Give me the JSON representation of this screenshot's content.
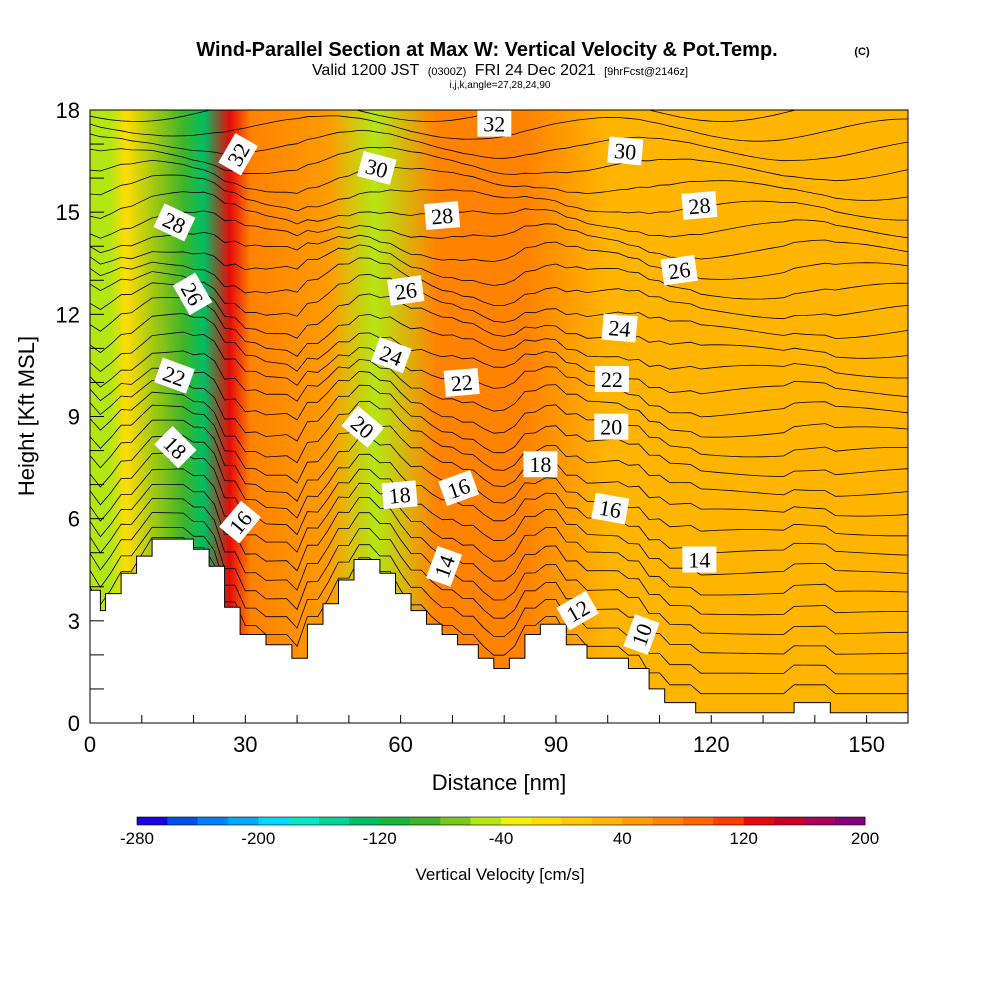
{
  "header": {
    "title": "Wind-Parallel Section at Max W: Vertical Velocity & Pot.Temp.",
    "title_unit": "(C)",
    "valid_a": "Valid 1200 JST",
    "valid_b": "(0300Z)",
    "valid_c": "FRI 24 Dec 2021",
    "valid_d": "[9hrFcst@2146z]",
    "ijk": "i,j,k,angle=27,28,24,90"
  },
  "chart_data": {
    "type": "heatmap",
    "xlabel": "Distance [nm]",
    "ylabel": "Height [Kft MSL]",
    "xlim": [
      0,
      158
    ],
    "ylim": [
      0,
      18
    ],
    "x_ticks": [
      0,
      30,
      60,
      90,
      120,
      150
    ],
    "y_ticks": [
      0,
      3,
      6,
      9,
      12,
      15,
      18
    ],
    "colorbar": {
      "title": "Vertical Velocity [cm/s]",
      "range": [
        -280,
        200
      ],
      "labels": [
        "-280",
        "-200",
        "-120",
        "-40",
        "40",
        "120",
        "200"
      ],
      "colors": [
        "#1a00e6",
        "#0050f0",
        "#0080ff",
        "#00a8ff",
        "#00d8ff",
        "#00e6c8",
        "#00d496",
        "#00be64",
        "#18b43c",
        "#40b428",
        "#78c81e",
        "#b4e614",
        "#f0f000",
        "#ffdc00",
        "#ffc800",
        "#ffb400",
        "#ff9b00",
        "#ff8200",
        "#ff6400",
        "#ff3c00",
        "#e60a0a",
        "#c80028",
        "#aa005a",
        "#820078"
      ]
    },
    "velocity_bands": [
      {
        "x_center": 1,
        "velocity": -50
      },
      {
        "x_center": 4,
        "velocity": -60
      },
      {
        "x_center": 7,
        "velocity": -20
      },
      {
        "x_center": 18,
        "velocity": -100
      },
      {
        "x_center": 22,
        "velocity": -140
      },
      {
        "x_center": 27,
        "velocity": 130
      },
      {
        "x_center": 31,
        "velocity": 60
      },
      {
        "x_center": 46,
        "velocity": 40
      },
      {
        "x_center": 55,
        "velocity": -50
      },
      {
        "x_center": 67,
        "velocity": 70
      },
      {
        "x_center": 84,
        "velocity": 60
      },
      {
        "x_center": 100,
        "velocity": 30
      },
      {
        "x_center": 140,
        "velocity": 20
      }
    ],
    "terrain": [
      [
        0,
        3.9
      ],
      [
        2,
        3.9
      ],
      [
        2,
        3.3
      ],
      [
        3,
        3.3
      ],
      [
        3,
        3.8
      ],
      [
        6,
        3.8
      ],
      [
        6,
        4.4
      ],
      [
        9,
        4.4
      ],
      [
        9,
        4.9
      ],
      [
        12,
        4.9
      ],
      [
        12,
        5.4
      ],
      [
        20,
        5.4
      ],
      [
        20,
        5.1
      ],
      [
        23,
        5.1
      ],
      [
        23,
        4.6
      ],
      [
        26,
        4.6
      ],
      [
        26,
        3.4
      ],
      [
        29,
        3.4
      ],
      [
        29,
        2.6
      ],
      [
        34,
        2.6
      ],
      [
        34,
        2.3
      ],
      [
        39,
        2.3
      ],
      [
        39,
        1.9
      ],
      [
        42,
        1.9
      ],
      [
        42,
        2.9
      ],
      [
        45,
        2.9
      ],
      [
        45,
        3.5
      ],
      [
        48,
        3.5
      ],
      [
        48,
        4.2
      ],
      [
        51,
        4.2
      ],
      [
        51,
        4.8
      ],
      [
        56,
        4.8
      ],
      [
        56,
        4.4
      ],
      [
        59,
        4.4
      ],
      [
        59,
        3.8
      ],
      [
        62,
        3.8
      ],
      [
        62,
        3.3
      ],
      [
        65,
        3.3
      ],
      [
        65,
        2.9
      ],
      [
        68,
        2.9
      ],
      [
        68,
        2.6
      ],
      [
        71,
        2.6
      ],
      [
        71,
        2.3
      ],
      [
        75,
        2.3
      ],
      [
        75,
        1.9
      ],
      [
        78,
        1.9
      ],
      [
        78,
        1.6
      ],
      [
        81,
        1.6
      ],
      [
        81,
        1.9
      ],
      [
        84,
        1.9
      ],
      [
        84,
        2.6
      ],
      [
        87,
        2.6
      ],
      [
        87,
        2.9
      ],
      [
        92,
        2.9
      ],
      [
        92,
        2.3
      ],
      [
        96,
        2.3
      ],
      [
        96,
        1.9
      ],
      [
        104,
        1.9
      ],
      [
        104,
        1.6
      ],
      [
        108,
        1.6
      ],
      [
        108,
        1.0
      ],
      [
        111,
        1.0
      ],
      [
        111,
        0.6
      ],
      [
        117,
        0.6
      ],
      [
        117,
        0.3
      ],
      [
        136,
        0.3
      ],
      [
        136,
        0.6
      ],
      [
        143,
        0.6
      ],
      [
        143,
        0.3
      ],
      [
        158,
        0.3
      ]
    ],
    "contour_labels": [
      {
        "text": "32",
        "x": 28.6,
        "y": 16.7,
        "angle": -60
      },
      {
        "text": "28",
        "x": 16.3,
        "y": 14.7,
        "angle": 25
      },
      {
        "text": "26",
        "x": 19.8,
        "y": 12.6,
        "angle": 60
      },
      {
        "text": "22",
        "x": 16.3,
        "y": 10.2,
        "angle": 20
      },
      {
        "text": "18",
        "x": 16.5,
        "y": 8.1,
        "angle": 45
      },
      {
        "text": "16",
        "x": 29.0,
        "y": 5.9,
        "angle": -50
      },
      {
        "text": "30",
        "x": 55.4,
        "y": 16.3,
        "angle": 15
      },
      {
        "text": "28",
        "x": 68.0,
        "y": 14.9,
        "angle": -5
      },
      {
        "text": "26",
        "x": 61.0,
        "y": 12.7,
        "angle": -8
      },
      {
        "text": "24",
        "x": 58.2,
        "y": 10.8,
        "angle": 20
      },
      {
        "text": "20",
        "x": 52.7,
        "y": 8.7,
        "angle": 40
      },
      {
        "text": "22",
        "x": 71.8,
        "y": 10.0,
        "angle": -5
      },
      {
        "text": "18",
        "x": 59.8,
        "y": 6.7,
        "angle": -5
      },
      {
        "text": "16",
        "x": 71.2,
        "y": 6.9,
        "angle": -20
      },
      {
        "text": "14",
        "x": 68.4,
        "y": 4.6,
        "angle": -70
      },
      {
        "text": "32",
        "x": 78.1,
        "y": 17.6,
        "angle": 0
      },
      {
        "text": "30",
        "x": 103.4,
        "y": 16.8,
        "angle": 5
      },
      {
        "text": "28",
        "x": 117.7,
        "y": 15.2,
        "angle": -5
      },
      {
        "text": "26",
        "x": 113.8,
        "y": 13.3,
        "angle": -8
      },
      {
        "text": "24",
        "x": 102.3,
        "y": 11.6,
        "angle": 5
      },
      {
        "text": "22",
        "x": 100.8,
        "y": 10.1,
        "angle": 0
      },
      {
        "text": "20",
        "x": 100.7,
        "y": 8.7,
        "angle": 0
      },
      {
        "text": "18",
        "x": 87.0,
        "y": 7.6,
        "angle": 0
      },
      {
        "text": "16",
        "x": 100.5,
        "y": 6.3,
        "angle": 10
      },
      {
        "text": "14",
        "x": 117.7,
        "y": 4.8,
        "angle": 0
      },
      {
        "text": "12",
        "x": 94.2,
        "y": 3.3,
        "angle": -30
      },
      {
        "text": "10",
        "x": 106.5,
        "y": 2.6,
        "angle": -70
      }
    ]
  }
}
